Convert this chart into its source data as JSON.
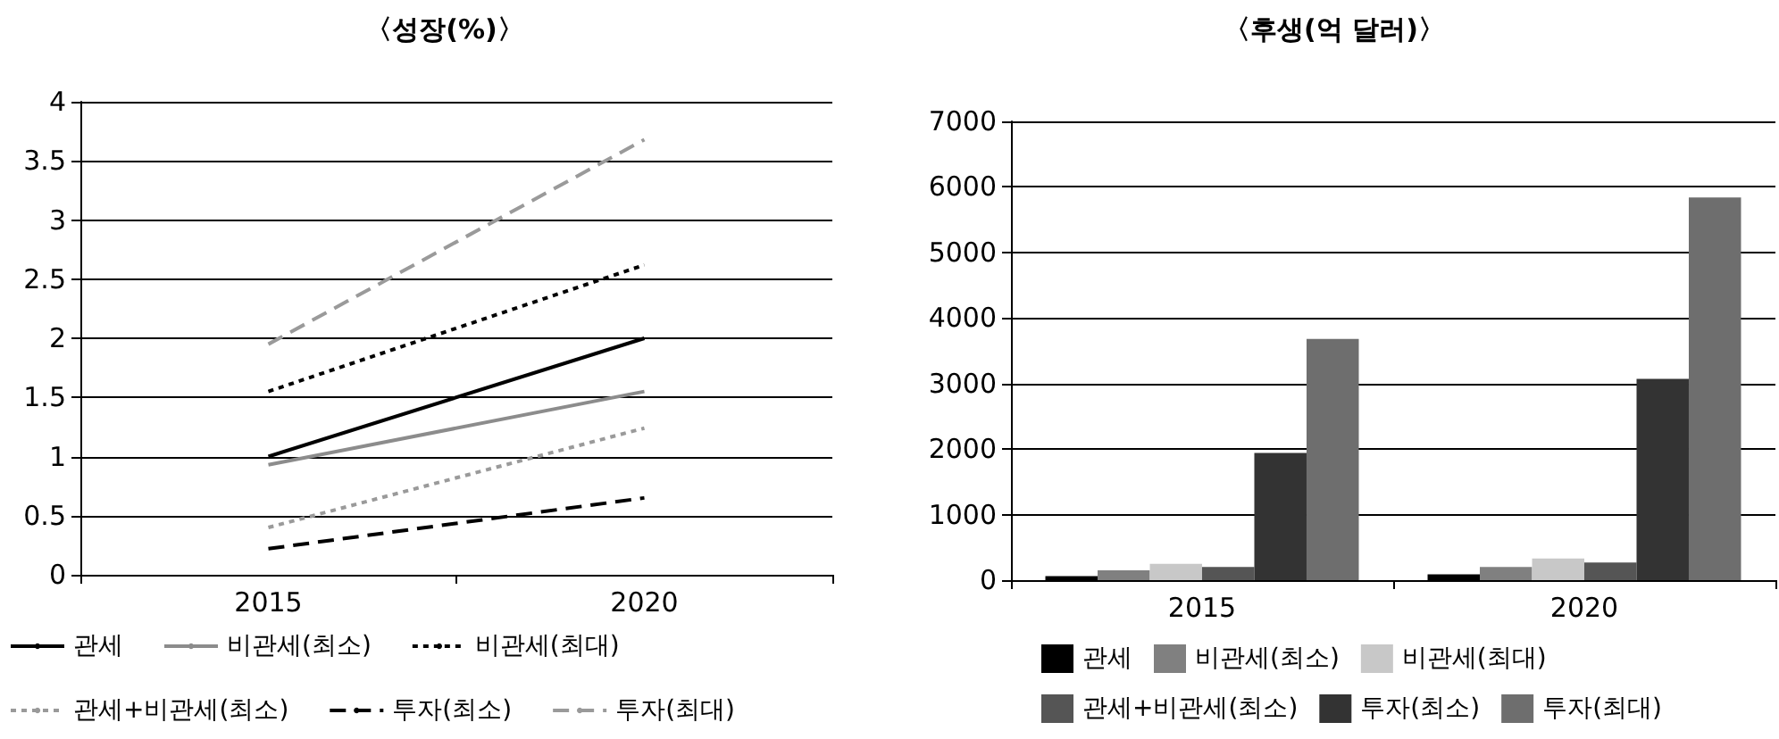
{
  "chart_data": [
    {
      "type": "line",
      "title": "〈성장(%)〉",
      "categories": [
        "2015",
        "2020"
      ],
      "ylim": [
        0,
        4
      ],
      "yticks": [
        0,
        0.5,
        1,
        1.5,
        2,
        2.5,
        3,
        3.5,
        4
      ],
      "grid": "y",
      "legend": "bottom",
      "marker": "none",
      "series": [
        {
          "name": "관세",
          "color": "#000000",
          "line_style": "solid",
          "values": [
            1.0,
            2.0
          ]
        },
        {
          "name": "비관세(최소)",
          "color": "#8c8c8c",
          "line_style": "solid",
          "values": [
            0.93,
            1.55
          ]
        },
        {
          "name": "비관세(최대)",
          "color": "#000000",
          "line_style": "dotted",
          "values": [
            1.55,
            2.62
          ]
        },
        {
          "name": "관세+비관세(최소)",
          "color": "#9a9a9a",
          "line_style": "dotted",
          "values": [
            0.4,
            1.24
          ]
        },
        {
          "name": "투자(최소)",
          "color": "#000000",
          "line_style": "dashed",
          "values": [
            0.22,
            0.65
          ]
        },
        {
          "name": "투자(최대)",
          "color": "#9a9a9a",
          "line_style": "dashed",
          "values": [
            1.95,
            3.68
          ]
        }
      ]
    },
    {
      "type": "bar",
      "title": "〈후생(억 달러)〉",
      "categories": [
        "2015",
        "2020"
      ],
      "ylim": [
        0,
        7000
      ],
      "yticks": [
        0,
        1000,
        2000,
        3000,
        4000,
        5000,
        6000,
        7000
      ],
      "grid": "y",
      "legend": "bottom",
      "series": [
        {
          "name": "관세",
          "color": "#000000",
          "values": [
            60,
            90
          ]
        },
        {
          "name": "비관세(최소)",
          "color": "#808080",
          "values": [
            150,
            200
          ]
        },
        {
          "name": "비관세(최대)",
          "color": "#c8c8c8",
          "values": [
            250,
            330
          ]
        },
        {
          "name": "관세+비관세(최소)",
          "color": "#555555",
          "values": [
            200,
            270
          ]
        },
        {
          "name": "투자(최소)",
          "color": "#333333",
          "values": [
            1940,
            3070
          ]
        },
        {
          "name": "투자(최대)",
          "color": "#6e6e6e",
          "values": [
            3680,
            5840
          ]
        }
      ]
    }
  ]
}
